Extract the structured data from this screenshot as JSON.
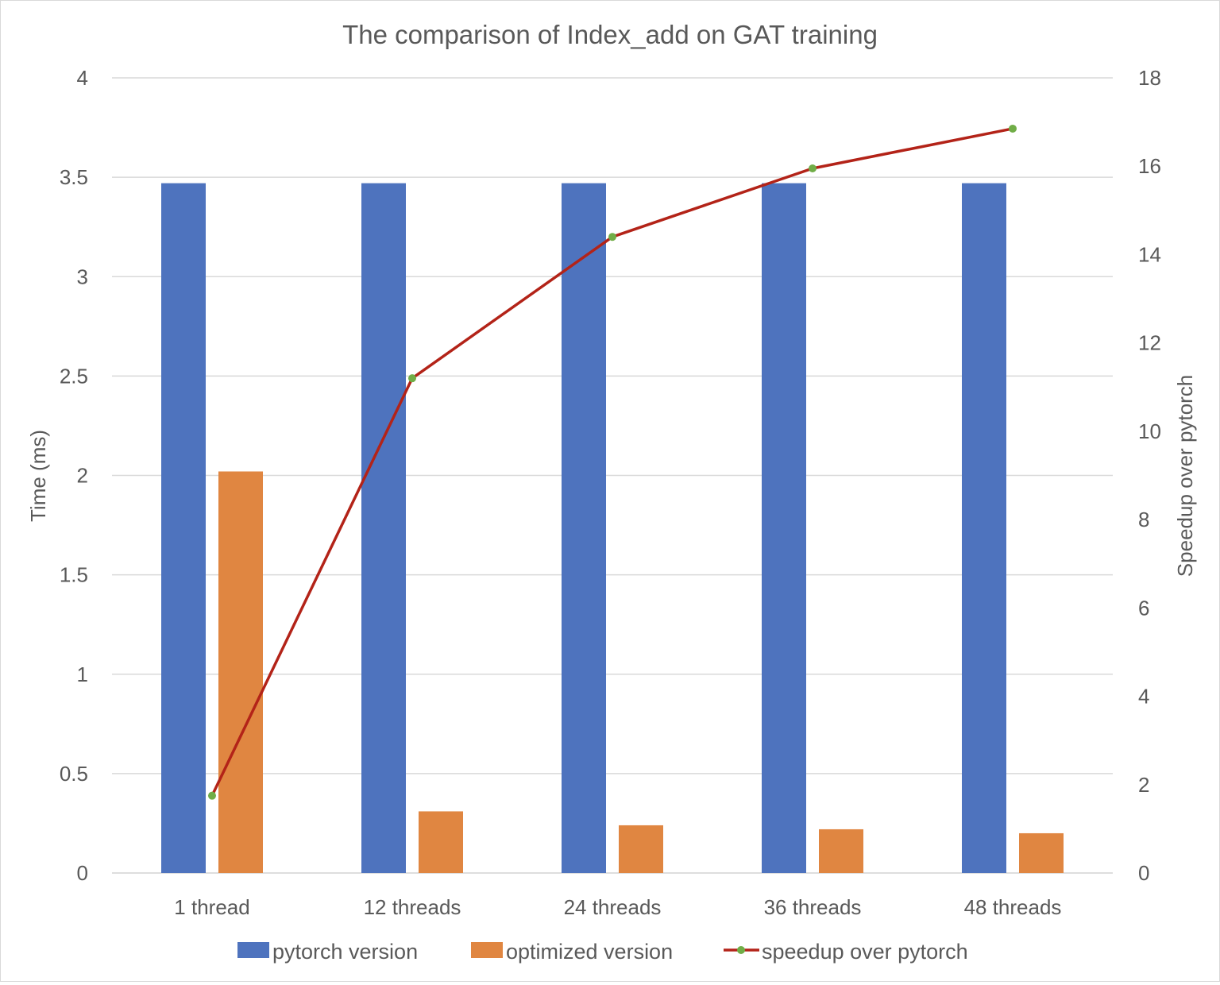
{
  "chart_data": {
    "type": "bar",
    "title": "The comparison of Index_add on GAT training",
    "categories": [
      "1 thread",
      "12 threads",
      "24 threads",
      "36 threads",
      "48 threads"
    ],
    "y_left": {
      "label": "Time (ms)",
      "range": [
        0,
        4
      ],
      "ticks": [
        "0",
        "0.5",
        "1",
        "1.5",
        "2",
        "2.5",
        "3",
        "3.5",
        "4"
      ],
      "tick_values": [
        0,
        0.5,
        1,
        1.5,
        2,
        2.5,
        3,
        3.5,
        4
      ]
    },
    "y_right": {
      "label": "Speedup over pytorch",
      "range": [
        0,
        18
      ],
      "ticks": [
        "0",
        "2",
        "4",
        "6",
        "8",
        "10",
        "12",
        "14",
        "16",
        "18"
      ],
      "tick_values": [
        0,
        2,
        4,
        6,
        8,
        10,
        12,
        14,
        16,
        18
      ]
    },
    "series": [
      {
        "name": "pytorch version",
        "type": "bar",
        "axis": "left",
        "color": "#4e73be",
        "values": [
          3.47,
          3.47,
          3.47,
          3.47,
          3.47
        ]
      },
      {
        "name": "optimized version",
        "type": "bar",
        "axis": "left",
        "color": "#e08641",
        "values": [
          2.02,
          0.31,
          0.24,
          0.22,
          0.2
        ]
      },
      {
        "name": "speedup over pytorch",
        "type": "line",
        "axis": "right",
        "color": "#b32318",
        "marker_color": "#70ad47",
        "values": [
          1.75,
          11.2,
          14.4,
          15.95,
          16.85
        ]
      }
    ],
    "grid": true,
    "legend_position": "bottom"
  }
}
